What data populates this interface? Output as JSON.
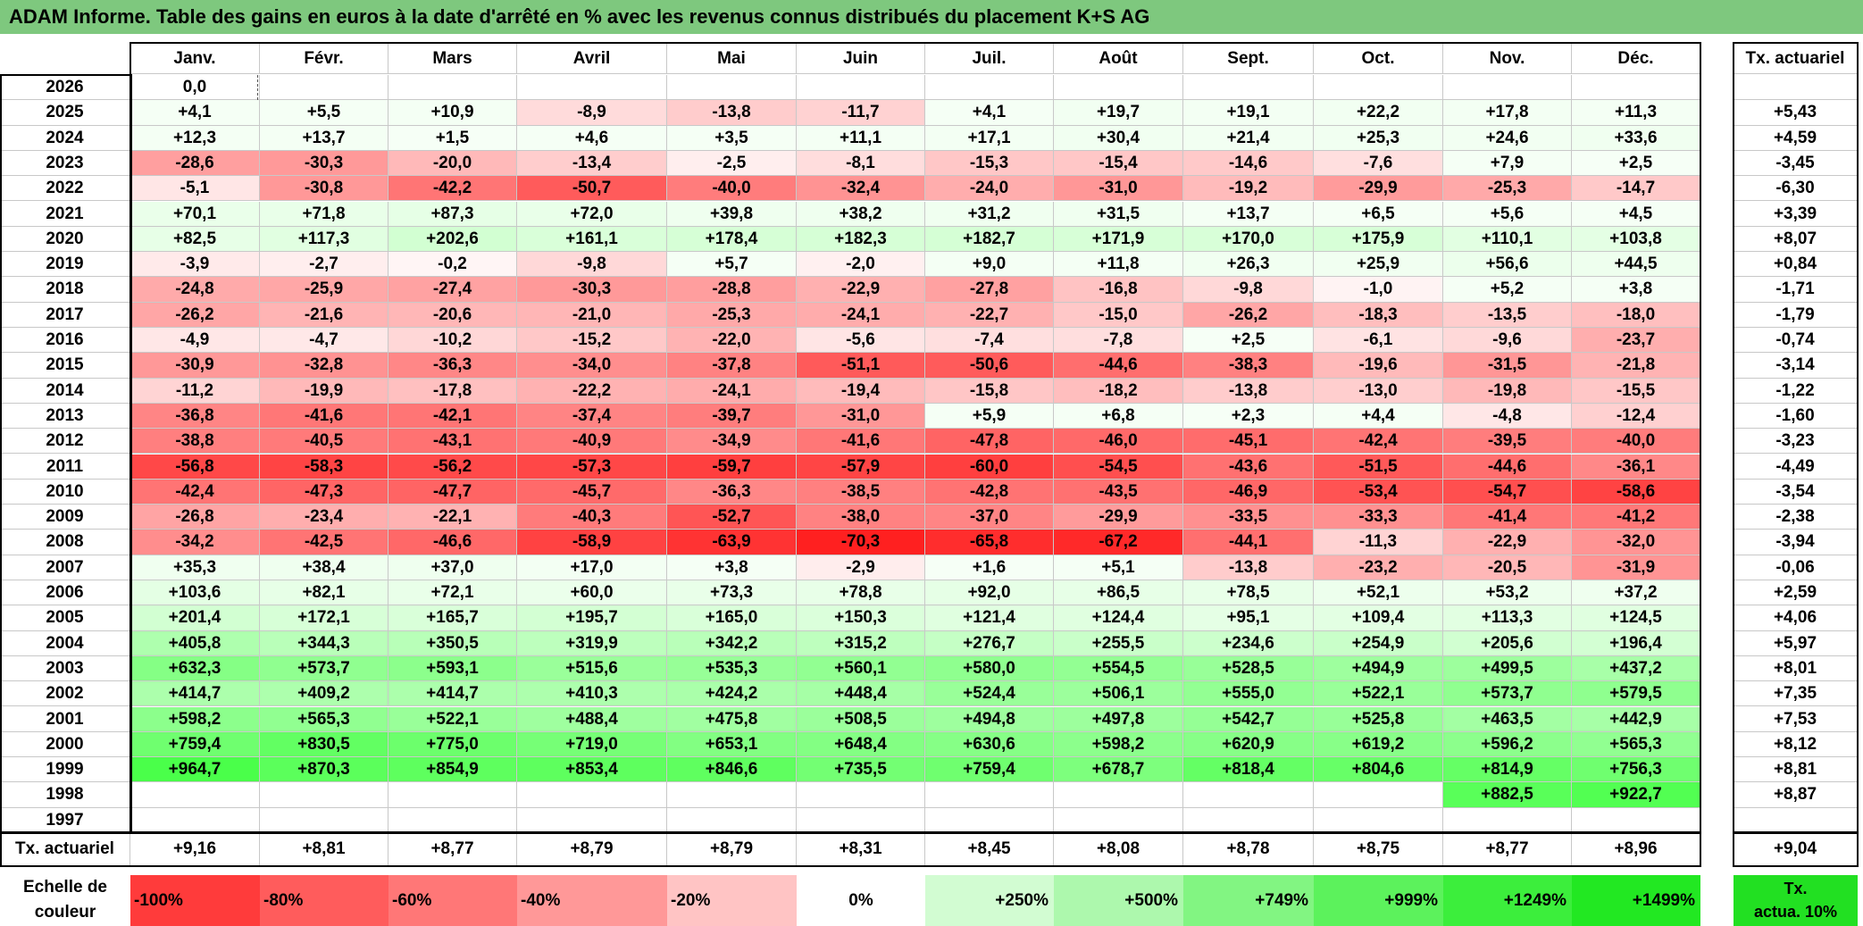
{
  "title": "ADAM Informe. Table des gains en euros à la date d'arrêté en % avec les revenus connus distribués du placement K+S AG",
  "months": [
    "Janv.",
    "Févr.",
    "Mars",
    "Avril",
    "Mai",
    "Juin",
    "Juil.",
    "Août",
    "Sept.",
    "Oct.",
    "Nov.",
    "Déc."
  ],
  "tx_header": "Tx. actuariel",
  "rows": [
    {
      "year": "2026",
      "values": [
        "0,0",
        "",
        "",
        "",
        "",
        "",
        "",
        "",
        "",
        "",
        "",
        ""
      ],
      "tx": ""
    },
    {
      "year": "2025",
      "values": [
        "+4,1",
        "+5,5",
        "+10,9",
        "-8,9",
        "-13,8",
        "-11,7",
        "+4,1",
        "+19,7",
        "+19,1",
        "+22,2",
        "+17,8",
        "+11,3"
      ],
      "tx": "+5,43"
    },
    {
      "year": "2024",
      "values": [
        "+12,3",
        "+13,7",
        "+1,5",
        "+4,6",
        "+3,5",
        "+11,1",
        "+17,1",
        "+30,4",
        "+21,4",
        "+25,3",
        "+24,6",
        "+33,6"
      ],
      "tx": "+4,59"
    },
    {
      "year": "2023",
      "values": [
        "-28,6",
        "-30,3",
        "-20,0",
        "-13,4",
        "-2,5",
        "-8,1",
        "-15,3",
        "-15,4",
        "-14,6",
        "-7,6",
        "+7,9",
        "+2,5"
      ],
      "tx": "-3,45"
    },
    {
      "year": "2022",
      "values": [
        "-5,1",
        "-30,8",
        "-42,2",
        "-50,7",
        "-40,0",
        "-32,4",
        "-24,0",
        "-31,0",
        "-19,2",
        "-29,9",
        "-25,3",
        "-14,7"
      ],
      "tx": "-6,30"
    },
    {
      "year": "2021",
      "values": [
        "+70,1",
        "+71,8",
        "+87,3",
        "+72,0",
        "+39,8",
        "+38,2",
        "+31,2",
        "+31,5",
        "+13,7",
        "+6,5",
        "+5,6",
        "+4,5"
      ],
      "tx": "+3,39"
    },
    {
      "year": "2020",
      "values": [
        "+82,5",
        "+117,3",
        "+202,6",
        "+161,1",
        "+178,4",
        "+182,3",
        "+182,7",
        "+171,9",
        "+170,0",
        "+175,9",
        "+110,1",
        "+103,8"
      ],
      "tx": "+8,07"
    },
    {
      "year": "2019",
      "values": [
        "-3,9",
        "-2,7",
        "-0,2",
        "-9,8",
        "+5,7",
        "-2,0",
        "+9,0",
        "+11,8",
        "+26,3",
        "+25,9",
        "+56,6",
        "+44,5"
      ],
      "tx": "+0,84"
    },
    {
      "year": "2018",
      "values": [
        "-24,8",
        "-25,9",
        "-27,4",
        "-30,3",
        "-28,8",
        "-22,9",
        "-27,8",
        "-16,8",
        "-9,8",
        "-1,0",
        "+5,2",
        "+3,8"
      ],
      "tx": "-1,71"
    },
    {
      "year": "2017",
      "values": [
        "-26,2",
        "-21,6",
        "-20,6",
        "-21,0",
        "-25,3",
        "-24,1",
        "-22,7",
        "-15,0",
        "-26,2",
        "-18,3",
        "-13,5",
        "-18,0"
      ],
      "tx": "-1,79"
    },
    {
      "year": "2016",
      "values": [
        "-4,9",
        "-4,7",
        "-10,2",
        "-15,2",
        "-22,0",
        "-5,6",
        "-7,4",
        "-7,8",
        "+2,5",
        "-6,1",
        "-9,6",
        "-23,7"
      ],
      "tx": "-0,74"
    },
    {
      "year": "2015",
      "values": [
        "-30,9",
        "-32,8",
        "-36,3",
        "-34,0",
        "-37,8",
        "-51,1",
        "-50,6",
        "-44,6",
        "-38,3",
        "-19,6",
        "-31,5",
        "-21,8"
      ],
      "tx": "-3,14"
    },
    {
      "year": "2014",
      "values": [
        "-11,2",
        "-19,9",
        "-17,8",
        "-22,2",
        "-24,1",
        "-19,4",
        "-15,8",
        "-18,2",
        "-13,8",
        "-13,0",
        "-19,8",
        "-15,5"
      ],
      "tx": "-1,22"
    },
    {
      "year": "2013",
      "values": [
        "-36,8",
        "-41,6",
        "-42,1",
        "-37,4",
        "-39,7",
        "-31,0",
        "+5,9",
        "+6,8",
        "+2,3",
        "+4,4",
        "-4,8",
        "-12,4"
      ],
      "tx": "-1,60"
    },
    {
      "year": "2012",
      "values": [
        "-38,8",
        "-40,5",
        "-43,1",
        "-40,9",
        "-34,9",
        "-41,6",
        "-47,8",
        "-46,0",
        "-45,1",
        "-42,4",
        "-39,5",
        "-40,0"
      ],
      "tx": "-3,23"
    },
    {
      "year": "2011",
      "values": [
        "-56,8",
        "-58,3",
        "-56,2",
        "-57,3",
        "-59,7",
        "-57,9",
        "-60,0",
        "-54,5",
        "-43,6",
        "-51,5",
        "-44,6",
        "-36,1"
      ],
      "tx": "-4,49"
    },
    {
      "year": "2010",
      "values": [
        "-42,4",
        "-47,3",
        "-47,7",
        "-45,7",
        "-36,3",
        "-38,5",
        "-42,8",
        "-43,5",
        "-46,9",
        "-53,4",
        "-54,7",
        "-58,6"
      ],
      "tx": "-3,54"
    },
    {
      "year": "2009",
      "values": [
        "-26,8",
        "-23,4",
        "-22,1",
        "-40,3",
        "-52,7",
        "-38,0",
        "-37,0",
        "-29,9",
        "-33,5",
        "-33,3",
        "-41,4",
        "-41,2"
      ],
      "tx": "-2,38"
    },
    {
      "year": "2008",
      "values": [
        "-34,2",
        "-42,5",
        "-46,6",
        "-58,9",
        "-63,9",
        "-70,3",
        "-65,8",
        "-67,2",
        "-44,1",
        "-11,3",
        "-22,9",
        "-32,0"
      ],
      "tx": "-3,94"
    },
    {
      "year": "2007",
      "values": [
        "+35,3",
        "+38,4",
        "+37,0",
        "+17,0",
        "+3,8",
        "-2,9",
        "+1,6",
        "+5,1",
        "-13,8",
        "-23,2",
        "-20,5",
        "-31,9"
      ],
      "tx": "-0,06"
    },
    {
      "year": "2006",
      "values": [
        "+103,6",
        "+82,1",
        "+72,1",
        "+60,0",
        "+73,3",
        "+78,8",
        "+92,0",
        "+86,5",
        "+78,5",
        "+52,1",
        "+53,2",
        "+37,2"
      ],
      "tx": "+2,59"
    },
    {
      "year": "2005",
      "values": [
        "+201,4",
        "+172,1",
        "+165,7",
        "+195,7",
        "+165,0",
        "+150,3",
        "+121,4",
        "+124,4",
        "+95,1",
        "+109,4",
        "+113,3",
        "+124,5"
      ],
      "tx": "+4,06"
    },
    {
      "year": "2004",
      "values": [
        "+405,8",
        "+344,3",
        "+350,5",
        "+319,9",
        "+342,2",
        "+315,2",
        "+276,7",
        "+255,5",
        "+234,6",
        "+254,9",
        "+205,6",
        "+196,4"
      ],
      "tx": "+5,97"
    },
    {
      "year": "2003",
      "values": [
        "+632,3",
        "+573,7",
        "+593,1",
        "+515,6",
        "+535,3",
        "+560,1",
        "+580,0",
        "+554,5",
        "+528,5",
        "+494,9",
        "+499,5",
        "+437,2"
      ],
      "tx": "+8,01"
    },
    {
      "year": "2002",
      "values": [
        "+414,7",
        "+409,2",
        "+414,7",
        "+410,3",
        "+424,2",
        "+448,4",
        "+524,4",
        "+506,1",
        "+555,0",
        "+522,1",
        "+573,7",
        "+579,5"
      ],
      "tx": "+7,35"
    },
    {
      "year": "2001",
      "values": [
        "+598,2",
        "+565,3",
        "+522,1",
        "+488,4",
        "+475,8",
        "+508,5",
        "+494,8",
        "+497,8",
        "+542,7",
        "+525,8",
        "+463,5",
        "+442,9"
      ],
      "tx": "+7,53"
    },
    {
      "year": "2000",
      "values": [
        "+759,4",
        "+830,5",
        "+775,0",
        "+719,0",
        "+653,1",
        "+648,4",
        "+630,6",
        "+598,2",
        "+620,9",
        "+619,2",
        "+596,2",
        "+565,3"
      ],
      "tx": "+8,12"
    },
    {
      "year": "1999",
      "values": [
        "+964,7",
        "+870,3",
        "+854,9",
        "+853,4",
        "+846,6",
        "+735,5",
        "+759,4",
        "+678,7",
        "+818,4",
        "+804,6",
        "+814,9",
        "+756,3"
      ],
      "tx": "+8,81"
    },
    {
      "year": "1998",
      "values": [
        "",
        "",
        "",
        "",
        "",
        "",
        "",
        "",
        "",
        "",
        "+882,5",
        "+922,7"
      ],
      "tx": "+8,87"
    },
    {
      "year": "1997",
      "values": [
        "",
        "",
        "",
        "",
        "",
        "",
        "",
        "",
        "",
        "",
        "",
        ""
      ],
      "tx": ""
    }
  ],
  "footer": {
    "label": "Tx. actuariel",
    "values": [
      "+9,16",
      "+8,81",
      "+8,77",
      "+8,79",
      "+8,79",
      "+8,31",
      "+8,45",
      "+8,08",
      "+8,78",
      "+8,75",
      "+8,77",
      "+8,96"
    ],
    "total": "+9,04"
  },
  "scale": {
    "label_line1": "Echelle de",
    "label_line2": "couleur",
    "items": [
      {
        "label": "-100%",
        "color": "#ff3b3b",
        "align": "left"
      },
      {
        "label": "-80%",
        "color": "#ff5c5c",
        "align": "left"
      },
      {
        "label": "-60%",
        "color": "#ff7777",
        "align": "left"
      },
      {
        "label": "-40%",
        "color": "#ff9898",
        "align": "left"
      },
      {
        "label": "-20%",
        "color": "#ffc4c4",
        "align": "left"
      },
      {
        "label": "0%",
        "color": "#ffffff",
        "align": "center"
      },
      {
        "label": "+250%",
        "color": "#d2fcd2",
        "align": "right"
      },
      {
        "label": "+500%",
        "color": "#adf8ad",
        "align": "right"
      },
      {
        "label": "+749%",
        "color": "#82f582",
        "align": "right"
      },
      {
        "label": "+999%",
        "color": "#5cf25c",
        "align": "right"
      },
      {
        "label": "+1249%",
        "color": "#3cee3c",
        "align": "right"
      },
      {
        "label": "+1499%",
        "color": "#22e822",
        "align": "right"
      }
    ],
    "tx_line1": "Tx.",
    "tx_line2": "actua. 10%"
  },
  "colors": {
    "title_bg": "#7ec87e",
    "neg_max": "#ff2020",
    "pos_max": "#22e822"
  }
}
